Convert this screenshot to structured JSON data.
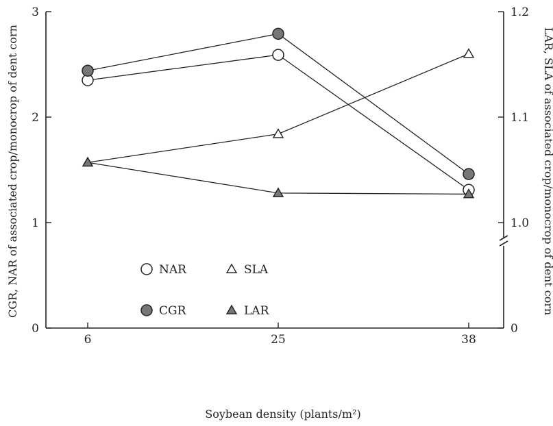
{
  "chart_data": {
    "type": "line",
    "title": "",
    "x": [
      "6",
      "25",
      "38"
    ],
    "xlabel": "Soybean density (plants/m²)",
    "ylabel_left": "CGR, NAR of associated crop/monocrop of dent corn",
    "ylabel_right": "LAR, SLA of associated crop/monocrop of dent corn",
    "ylim_left": [
      0,
      3
    ],
    "yticks_left": [
      "0",
      "1",
      "2",
      "3"
    ],
    "ylim_right": [
      0,
      1.2
    ],
    "yticks_right": [
      "0",
      "1.0",
      "1.1",
      "1.2"
    ],
    "right_axis_break": true,
    "grid": false,
    "series": [
      {
        "name": "NAR",
        "axis": "left",
        "marker": "open-circle",
        "values": [
          2.35,
          2.59,
          1.31
        ]
      },
      {
        "name": "CGR",
        "axis": "left",
        "marker": "filled-circle",
        "values": [
          2.44,
          2.79,
          1.46
        ]
      },
      {
        "name": "SLA",
        "axis": "right",
        "marker": "open-triangle",
        "values": [
          1.057,
          1.084,
          1.16
        ]
      },
      {
        "name": "LAR",
        "axis": "right",
        "marker": "filled-triangle",
        "values": [
          1.057,
          1.028,
          1.027
        ]
      }
    ],
    "legend": {
      "placement": "center-left",
      "items": [
        {
          "label": "NAR",
          "marker": "open-circle"
        },
        {
          "label": "SLA",
          "marker": "open-triangle"
        },
        {
          "label": "CGR",
          "marker": "filled-circle"
        },
        {
          "label": "LAR",
          "marker": "filled-triangle"
        }
      ]
    },
    "colors": {
      "ink": "#222222",
      "fill": "#777777",
      "background": "#ffffff"
    }
  }
}
